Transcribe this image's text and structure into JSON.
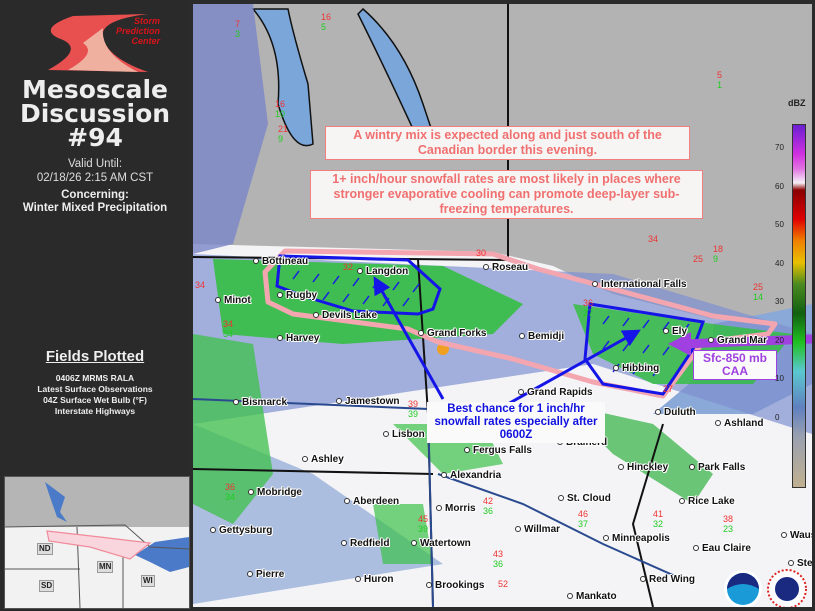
{
  "sidebar": {
    "logo_text": "Storm Prediction Center",
    "title_line1": "Mesoscale",
    "title_line2": "Discussion",
    "title_number": "#94",
    "valid_label": "Valid Until:",
    "valid_value": "02/18/26 2:15 AM CST",
    "concerning_label": "Concerning:",
    "concerning_value": "Winter Mixed Precipitation",
    "fields_heading": "Fields Plotted",
    "fields": [
      "0406Z MRMS RALA",
      "Latest Surface Observations",
      "04Z Surface Wet Bulb (°F)",
      "Interstate Highways"
    ],
    "inset_states": [
      "ND",
      "MN",
      "SD",
      "WI"
    ]
  },
  "annotations": {
    "wintry_mix": "A wintry mix is expected along and just south of the Canadian border this evening.",
    "snowfall_rates": "1+ inch/hour snowfall rates are most likely in places where stronger evaporative cooling can promote deep-layer sub-freezing temperatures.",
    "best_chance": "Best chance for 1 inch/hr snowfall rates especially after 0600Z",
    "caa": "Sfc-850 mb CAA"
  },
  "cities": [
    "Bottineau",
    "Langdon",
    "Roseau",
    "International Falls",
    "Minot",
    "Rugby",
    "Devils Lake",
    "Grand Forks",
    "Harvey",
    "Ely",
    "Grand Mar",
    "Bemidji",
    "Hibbing",
    "Grand Rapids",
    "Duluth",
    "Bismarck",
    "Jamestown",
    "Lisbon",
    "Ashley",
    "Fergus Falls",
    "Brainerd",
    "Ashland",
    "Alexandria",
    "Mobridge",
    "Aberdeen",
    "Hinckley",
    "Park Falls",
    "Morris",
    "St. Cloud",
    "Rice Lake",
    "Willmar",
    "Gettysburg",
    "Redfield",
    "Watertown",
    "Minneapolis",
    "Eau Claire",
    "Waus",
    "Pierre",
    "Huron",
    "Brookings",
    "Red Wing",
    "Mankato",
    "Stev"
  ],
  "observations": [
    {
      "temp": "7",
      "wetbulb": "3"
    },
    {
      "temp": "16",
      "wetbulb": "5"
    },
    {
      "temp": "5",
      "wetbulb": "1"
    },
    {
      "temp": "16",
      "wetbulb": "10"
    },
    {
      "temp": "21",
      "wetbulb": "9"
    },
    {
      "temp": "18",
      "wetbulb": "9"
    },
    {
      "temp": "25",
      "wetbulb": "14"
    },
    {
      "temp": "34",
      "wetbulb": ""
    },
    {
      "temp": "32",
      "wetbulb": ""
    },
    {
      "temp": "30",
      "wetbulb": ""
    },
    {
      "temp": "25",
      "wetbulb": ""
    },
    {
      "temp": "36",
      "wetbulb": "27"
    },
    {
      "temp": "34",
      "wetbulb": ""
    },
    {
      "temp": "27",
      "wetbulb": ""
    },
    {
      "temp": "34",
      "wetbulb": "34"
    },
    {
      "temp": "36",
      "wetbulb": "34"
    },
    {
      "temp": "39",
      "wetbulb": "39"
    },
    {
      "temp": "42",
      "wetbulb": "36"
    },
    {
      "temp": "45",
      "wetbulb": "39"
    },
    {
      "temp": "52",
      "wetbulb": ""
    },
    {
      "temp": "43",
      "wetbulb": "36"
    },
    {
      "temp": "46",
      "wetbulb": "37"
    },
    {
      "temp": "38",
      "wetbulb": "23"
    },
    {
      "temp": "41",
      "wetbulb": "32"
    }
  ],
  "colorbar": {
    "unit": "dBZ",
    "ticks": [
      "70",
      "60",
      "50",
      "40",
      "30",
      "20",
      "10",
      "0"
    ]
  },
  "colors": {
    "outline": "#f4a6b0",
    "arrows": "#1515e8",
    "caa_arrow": "#a040e0",
    "note_text": "#f07070"
  },
  "logos": [
    "NOAA",
    "National Weather Service"
  ]
}
